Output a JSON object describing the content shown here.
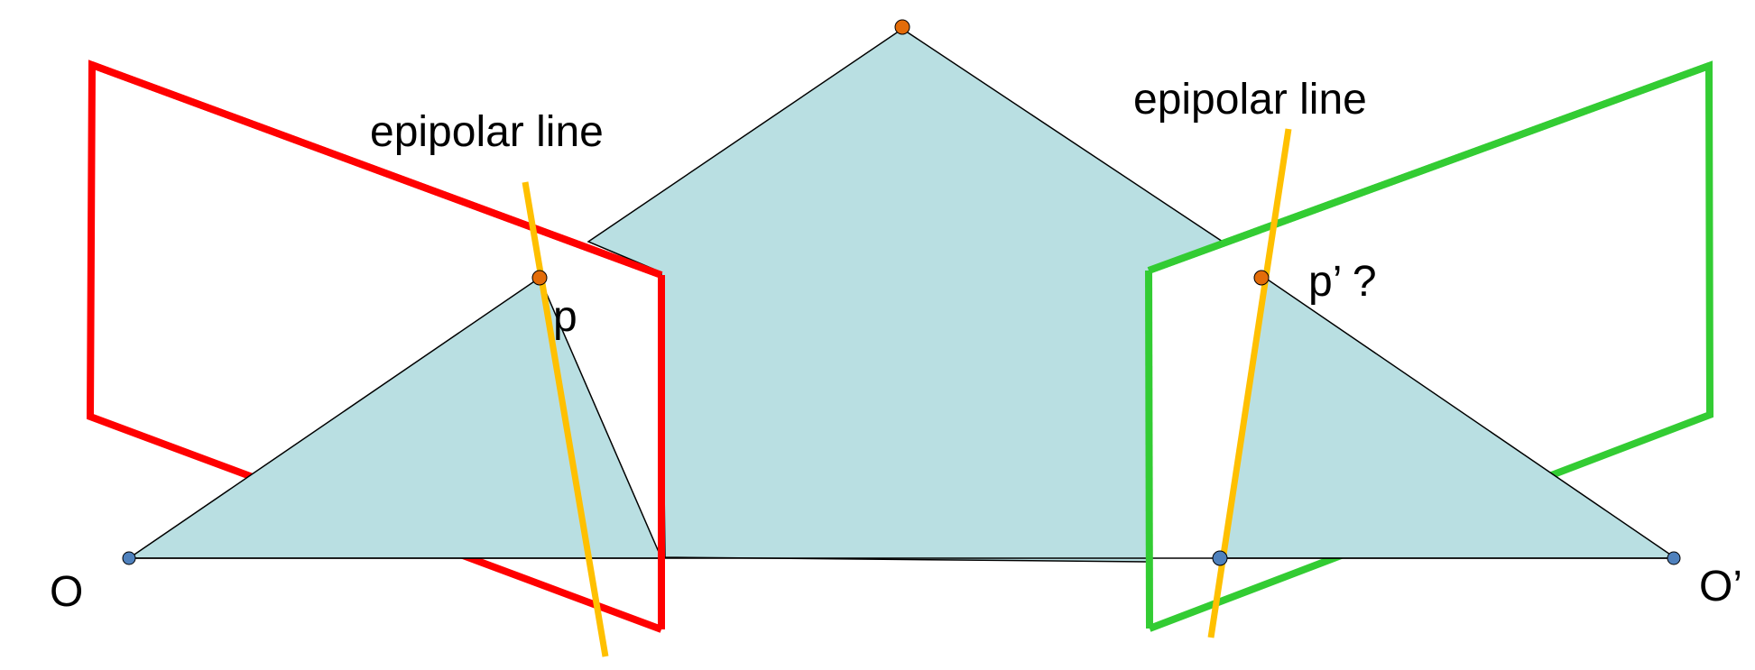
{
  "labels": {
    "epipolar_left": "epipolar line",
    "epipolar_right": "epipolar line",
    "point_left": "p",
    "point_right": "p’ ?",
    "center_left": "O",
    "center_right": "O’"
  },
  "colors": {
    "triangle_fill": "#b9dfe2",
    "left_image_plane": "#ff0000",
    "right_image_plane": "#33cc33",
    "epipolar_line": "#ffc000",
    "scene_point": "#e36c09",
    "camera_center": "#4f81bd"
  }
}
